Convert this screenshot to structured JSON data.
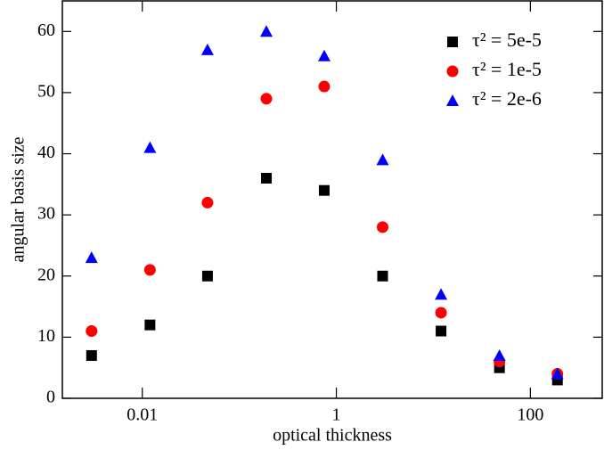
{
  "chart_data": {
    "type": "scatter",
    "log_x": true,
    "xlabel": "optical thickness",
    "ylabel": "angular basis size",
    "x": [
      0.003,
      0.012,
      0.047,
      0.19,
      0.75,
      3,
      12,
      48,
      190
    ],
    "series": [
      {
        "name": "τ² = 5e-5",
        "color": "#000000",
        "marker": "square",
        "values": [
          7,
          12,
          20,
          36,
          34,
          20,
          11,
          5,
          3
        ]
      },
      {
        "name": "τ² = 1e-5",
        "color": "#ff0000",
        "marker": "circle",
        "values": [
          11,
          21,
          32,
          49,
          51,
          28,
          14,
          6,
          4
        ]
      },
      {
        "name": "τ² = 2e-6",
        "color": "#0000ff",
        "marker": "triangle",
        "values": [
          23,
          41,
          57,
          60,
          56,
          39,
          17,
          7,
          4
        ]
      }
    ],
    "xlim": [
      0.0015,
      550
    ],
    "xticks": [
      0.01,
      1,
      100
    ],
    "ylim": [
      0,
      65
    ],
    "yticks": [
      0,
      10,
      20,
      30,
      40,
      50,
      60
    ],
    "legend": "upper right"
  }
}
